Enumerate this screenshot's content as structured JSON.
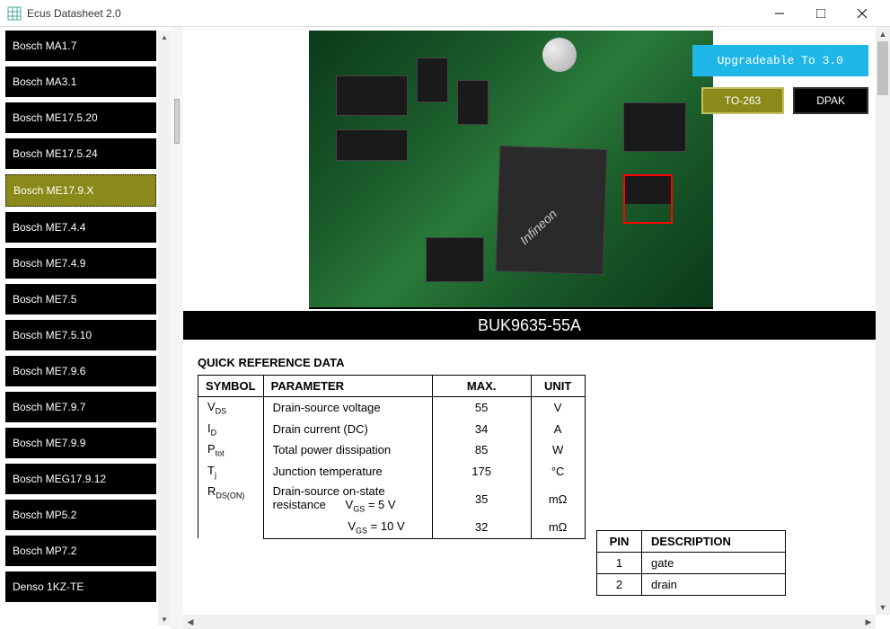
{
  "window": {
    "title": "Ecus Datasheet 2.0"
  },
  "sidebar": {
    "items": [
      {
        "label": "Bosch MA1.7",
        "selected": false
      },
      {
        "label": "Bosch MA3.1",
        "selected": false
      },
      {
        "label": "Bosch ME17.5.20",
        "selected": false
      },
      {
        "label": "Bosch ME17.5.24",
        "selected": false
      },
      {
        "label": "Bosch ME17.9.X",
        "selected": true
      },
      {
        "label": "Bosch ME7.4.4",
        "selected": false
      },
      {
        "label": "Bosch ME7.4.9",
        "selected": false
      },
      {
        "label": "Bosch ME7.5",
        "selected": false
      },
      {
        "label": "Bosch ME7.5.10",
        "selected": false
      },
      {
        "label": "Bosch ME7.9.6",
        "selected": false
      },
      {
        "label": "Bosch ME7.9.7",
        "selected": false
      },
      {
        "label": "Bosch ME7.9.9",
        "selected": false
      },
      {
        "label": "Bosch MEG17.9.12",
        "selected": false
      },
      {
        "label": "Bosch MP5.2",
        "selected": false
      },
      {
        "label": "Bosch MP7.2",
        "selected": false
      },
      {
        "label": "Denso 1KZ-TE",
        "selected": false
      }
    ]
  },
  "top_buttons": {
    "upgrade": "Upgradeable To 3.0",
    "pkg1": "TO-263",
    "pkg2": "DPAK"
  },
  "part": {
    "title": "BUK9635-55A"
  },
  "datasheet": {
    "heading": "QUICK REFERENCE DATA",
    "headers": {
      "symbol": "SYMBOL",
      "parameter": "PARAMETER",
      "max": "MAX.",
      "unit": "UNIT"
    },
    "rows": [
      {
        "sym_main": "V",
        "sym_sub": "DS",
        "param": "Drain-source voltage",
        "max": "55",
        "unit": "V"
      },
      {
        "sym_main": "I",
        "sym_sub": "D",
        "param": "Drain current (DC)",
        "max": "34",
        "unit": "A"
      },
      {
        "sym_main": "P",
        "sym_sub": "tot",
        "param": "Total power dissipation",
        "max": "85",
        "unit": "W"
      },
      {
        "sym_main": "T",
        "sym_sub": "j",
        "param": "Junction temperature",
        "max": "175",
        "unit": "°C"
      }
    ],
    "rdson": {
      "sym_main": "R",
      "sym_sub": "DS(ON)",
      "param": "Drain-source on-state resistance",
      "cond1_label": "V",
      "cond1_sub": "GS",
      "cond1_val": " = 5 V",
      "max1": "35",
      "unit1": "mΩ",
      "cond2_label": "V",
      "cond2_sub": "GS",
      "cond2_val": " = 10 V",
      "max2": "32",
      "unit2": "mΩ"
    }
  },
  "pin_table": {
    "headers": {
      "pin": "PIN",
      "desc": "DESCRIPTION"
    },
    "rows": [
      {
        "pin": "1",
        "desc": "gate"
      },
      {
        "pin": "2",
        "desc": "drain"
      }
    ]
  },
  "colors": {
    "sidebar_bg": "#000000",
    "sidebar_selected": "#8a8a1a",
    "upgrade_btn": "#1fb6e8",
    "pkg_to263": "#8a8a1a",
    "pkg_dpak": "#000000",
    "title_bar": "#000000"
  }
}
